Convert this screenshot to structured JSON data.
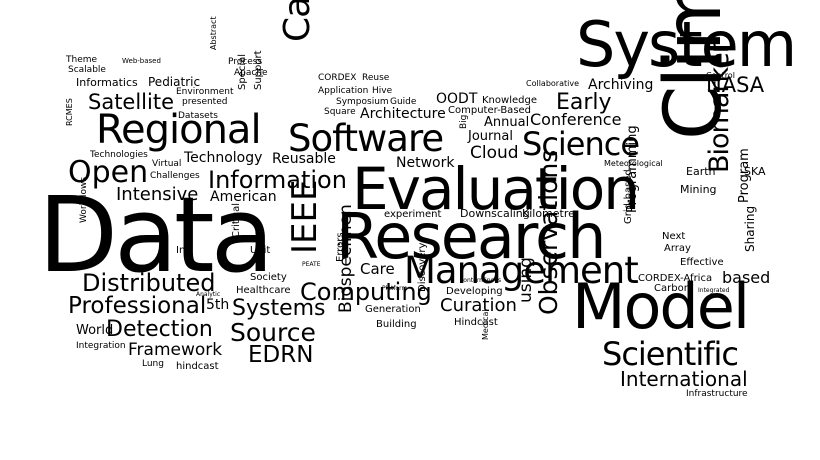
{
  "colors": {
    "background": "#ffffff",
    "text": "#000000"
  },
  "words": {
    "data": "Data",
    "climate": "Climate",
    "evaluation": "Evaluation",
    "research": "Research",
    "system": "System",
    "model": "Model",
    "regional": "Regional",
    "software": "Software",
    "management": "Management",
    "cancer": "Cancer",
    "ieee": "IEEE",
    "observations": "Observations",
    "science": "Science",
    "scientific": "Scientific",
    "biomarker": "Biomarker",
    "open": "Open",
    "information": "Information",
    "distributed": "Distributed",
    "professional": "Professional",
    "satellite": "Satellite",
    "intensive": "Intensive",
    "source": "Source",
    "edrn": "EDRN",
    "computing": "Computing",
    "systems": "Systems",
    "detection": "Detection",
    "international": "International",
    "curation": "Curation",
    "early": "Early",
    "nasa": "NASA",
    "biospecimen": "Biospecimen",
    "conference": "Conference",
    "framework": "Framework",
    "american": "American",
    "technology": "Technology",
    "reusable": "Reusable",
    "cloud": "Cloud",
    "network": "Network",
    "architecture": "Architecture",
    "oodt": "OODT",
    "using": "using",
    "based": "based",
    "care": "Care",
    "archiving": "Archiving",
    "journal": "Journal",
    "annual": "Annual",
    "programming": "Programming",
    "program": "Program",
    "sharing": "Sharing",
    "pediatric": "Pediatric",
    "informatics": "Informatics",
    "downscaling": "Downscaling",
    "kilometre": "Kilometre",
    "experiment": "experiment",
    "developing": "Developing",
    "generation": "Generation",
    "discovery": "Discovery",
    "building": "Building",
    "hindcast_cap": "Hindcast",
    "hindcast": "hindcast",
    "world": "World",
    "integration": "Integration",
    "lung": "Lung",
    "healthcare": "Healthcare",
    "society": "Society",
    "fifth": "5th",
    "unit": "Unit",
    "intl": "Intl",
    "critical": "Critical",
    "errors": "Errors",
    "mining": "Mining",
    "earth": "Earth",
    "effective": "Effective",
    "ska": "SKA",
    "carbon": "Carbon",
    "cordex_africa": "CORDEX-Africa",
    "array": "Array",
    "next": "Next",
    "grid_based": "Grid-based",
    "knowledge": "Knowledge",
    "computer_based": "Computer-Based",
    "collaborative": "Collaborative",
    "control": "Control",
    "cordex": "CORDEX",
    "reuse": "Reuse",
    "application": "Application",
    "hive": "Hive",
    "symposium": "Symposium",
    "guide": "Guide",
    "square": "Square",
    "process": "Process",
    "apache": "Apache",
    "environment": "Environment",
    "presented": "presented",
    "datasets": "Datasets",
    "special": "Special",
    "support": "Support",
    "abstract": "Abstract",
    "theme": "Theme",
    "scalable": "Scalable",
    "web_based": "Web-based",
    "technologies": "Technologies",
    "challenges": "Challenges",
    "virtual": "Virtual",
    "rcmes": "RCMES",
    "workflows": "Workflows",
    "meteorological": "Meteorological",
    "medical": "Medical",
    "peate": "PEATE",
    "platform": "Platform",
    "conterminous": "conterminous",
    "big": "Big",
    "analytic": "Analytic",
    "integrated": "Integrated",
    "infrastructure": "Infrastructure"
  }
}
